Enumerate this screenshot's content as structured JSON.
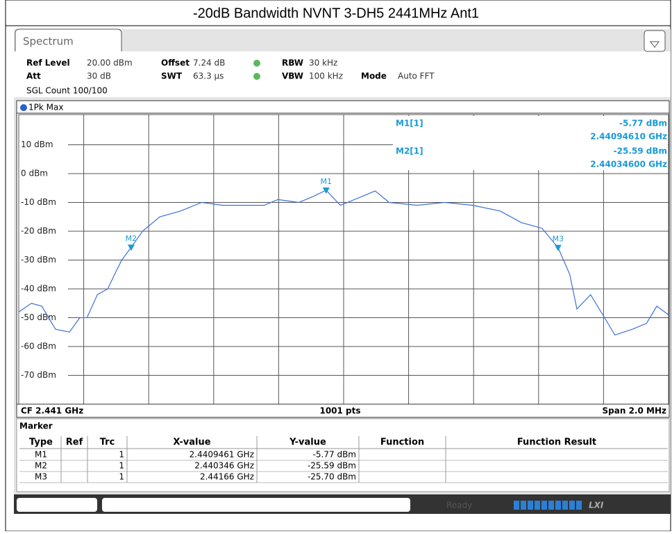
{
  "title": "-20dB Bandwidth NVNT 3-DH5 2441MHz Ant1",
  "tab": "Spectrum",
  "settings": {
    "row1": [
      [
        "Ref Level",
        "20.00 dBm"
      ],
      [
        "Offset",
        "7.24 dB"
      ],
      [
        "RBW",
        "30 kHz"
      ]
    ],
    "row2": [
      [
        "Att",
        "30 dB"
      ],
      [
        "SWT",
        "63.3 µs"
      ],
      [
        "VBW",
        "100 kHz"
      ],
      [
        "Mode",
        "Auto FFT"
      ]
    ],
    "row3": "SGL Count 100/100"
  },
  "trace_label": "1Pk Max",
  "chart_data": {
    "type": "line",
    "ylim": [
      -80,
      20
    ],
    "xlim": [
      2.44,
      2.442
    ],
    "yticks": [
      {
        "value": 10,
        "label": "10 dBm"
      },
      {
        "value": 0,
        "label": "0 dBm"
      },
      {
        "value": -10,
        "label": "-10 dBm"
      },
      {
        "value": -20,
        "label": "-20 dBm"
      },
      {
        "value": -30,
        "label": "-30 dBm"
      },
      {
        "value": -40,
        "label": "-40 dBm"
      },
      {
        "value": -50,
        "label": "-50 dBm"
      },
      {
        "value": -60,
        "label": "-60 dBm"
      },
      {
        "value": -70,
        "label": "-70 dBm"
      }
    ],
    "grid": true,
    "x": [
      2.44,
      2.440039,
      2.440071,
      2.440113,
      2.440156,
      2.440188,
      2.44021,
      2.440242,
      2.440274,
      2.440295,
      2.440317,
      2.440346,
      2.440381,
      2.440434,
      2.440498,
      2.440563,
      2.440627,
      2.440691,
      2.440755,
      2.440798,
      2.440862,
      2.440905,
      2.440946,
      2.44099,
      2.441055,
      2.441097,
      2.44114,
      2.441226,
      2.441311,
      2.441397,
      2.441482,
      2.441547,
      2.441611,
      2.44166,
      2.441696,
      2.441718,
      2.44176,
      2.441803,
      2.441835,
      2.441889,
      2.441932,
      2.441964,
      2.442
    ],
    "series": [
      {
        "name": "1Pk Max",
        "color": "#3b6fd8",
        "values": [
          -48,
          -45,
          -46,
          -54,
          -55,
          -50,
          -50,
          -42,
          -40,
          -35,
          -30,
          -25.59,
          -20,
          -15,
          -13,
          -10,
          -11,
          -11,
          -11,
          -9,
          -10,
          -8,
          -5.77,
          -11,
          -8,
          -6,
          -10,
          -11,
          -10,
          -11,
          -13,
          -17,
          -19,
          -25.7,
          -35,
          -47,
          -42,
          -50,
          -56,
          -54,
          -52,
          -46,
          -49
        ]
      }
    ],
    "markers": [
      {
        "label": "M1",
        "x": 2.4409461,
        "y": -5.77,
        "color": "#1a9ad6"
      },
      {
        "label": "M2",
        "x": 2.440346,
        "y": -25.59,
        "color": "#1a9ad6"
      },
      {
        "label": "M3",
        "x": 2.44166,
        "y": -25.7,
        "color": "#1a9ad6"
      }
    ],
    "readout": [
      [
        "M1[1]",
        "-5.77 dBm",
        "2.44094610 GHz"
      ],
      [
        "M2[1]",
        "-25.59 dBm",
        "2.44034600 GHz"
      ]
    ],
    "footer": [
      "CF 2.441 GHz",
      "1001 pts",
      "Span 2.0 MHz"
    ]
  },
  "marker_table": {
    "title": "Marker",
    "header": [
      "Type",
      "Ref",
      "Trc",
      "X-value",
      "Y-value",
      "Function",
      "Function Result"
    ],
    "rows": [
      [
        "M1",
        "",
        "1",
        "2.4409461 GHz",
        "-5.77 dBm",
        "",
        ""
      ],
      [
        "M2",
        "",
        "1",
        "2.440346 GHz",
        "-25.59 dBm",
        "",
        ""
      ],
      [
        "M3",
        "",
        "1",
        "2.44166 GHz",
        "-25.70 dBm",
        "",
        ""
      ]
    ]
  },
  "status": "Ready",
  "brand": "LXI"
}
